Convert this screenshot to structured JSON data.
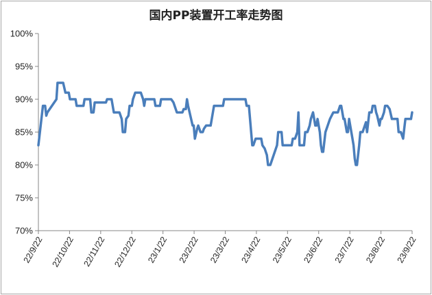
{
  "chart_data": {
    "type": "line",
    "title": "国内PP装置开工率走势图",
    "xlabel": "",
    "ylabel": "",
    "ylim": [
      70,
      100
    ],
    "grid": false,
    "legend": "none",
    "line_color": "#4a7ebb",
    "y_ticks": [
      "70%",
      "75%",
      "80%",
      "85%",
      "90%",
      "95%",
      "100%"
    ],
    "x_ticks": [
      "22/9/22",
      "22/10/22",
      "22/11/22",
      "22/12/22",
      "23/1/22",
      "23/2/22",
      "23/3/22",
      "23/4/22",
      "23/5/22",
      "23/6/22",
      "23/7/22",
      "23/8/22",
      "23/9/22"
    ],
    "series": [
      {
        "values": [
          [
            0,
            83.0
          ],
          [
            4,
            89.0
          ],
          [
            6,
            89.0
          ],
          [
            7,
            87.5
          ],
          [
            8,
            88.0
          ],
          [
            12,
            89.0
          ],
          [
            16,
            90.0
          ],
          [
            17,
            92.5
          ],
          [
            22,
            92.5
          ],
          [
            24,
            91.0
          ],
          [
            27,
            91.0
          ],
          [
            28,
            90.0
          ],
          [
            33,
            90.0
          ],
          [
            34,
            89.0
          ],
          [
            40,
            89.0
          ],
          [
            41,
            90.0
          ],
          [
            46,
            90.0
          ],
          [
            47,
            88.0
          ],
          [
            49,
            88.0
          ],
          [
            50,
            89.5
          ],
          [
            60,
            89.5
          ],
          [
            61,
            90.0
          ],
          [
            65,
            90.0
          ],
          [
            67,
            88.0
          ],
          [
            72,
            88.0
          ],
          [
            74,
            87.0
          ],
          [
            75,
            85.0
          ],
          [
            77,
            85.0
          ],
          [
            78,
            87.0
          ],
          [
            80,
            87.5
          ],
          [
            81,
            89.0
          ],
          [
            83,
            89.0
          ],
          [
            84,
            90.0
          ],
          [
            86,
            91.0
          ],
          [
            91,
            91.0
          ],
          [
            93,
            90.0
          ],
          [
            94,
            89.0
          ],
          [
            95,
            90.0
          ],
          [
            103,
            90.0
          ],
          [
            104,
            89.0
          ],
          [
            108,
            89.0
          ],
          [
            109,
            90.0
          ],
          [
            118,
            90.0
          ],
          [
            120,
            89.5
          ],
          [
            123,
            88.0
          ],
          [
            128,
            88.0
          ],
          [
            129,
            88.5
          ],
          [
            131,
            88.5
          ],
          [
            132,
            90.0
          ],
          [
            133,
            89.0
          ],
          [
            135,
            87.5
          ],
          [
            137,
            86.0
          ],
          [
            138,
            86.0
          ],
          [
            139,
            84.0
          ],
          [
            141,
            85.5
          ],
          [
            142,
            86.0
          ],
          [
            144,
            85.0
          ],
          [
            146,
            85.0
          ],
          [
            147,
            85.5
          ],
          [
            149,
            86.0
          ],
          [
            153,
            86.0
          ],
          [
            156,
            89.0
          ],
          [
            164,
            89.0
          ],
          [
            165,
            90.0
          ],
          [
            184,
            90.0
          ],
          [
            185,
            89.0
          ],
          [
            187,
            89.0
          ],
          [
            190,
            83.0
          ],
          [
            191,
            83.0
          ],
          [
            193,
            84.0
          ],
          [
            198,
            84.0
          ],
          [
            199,
            83.0
          ],
          [
            201,
            82.5
          ],
          [
            203,
            81.5
          ],
          [
            204,
            80.0
          ],
          [
            206,
            80.0
          ],
          [
            212,
            83.0
          ],
          [
            213,
            85.0
          ],
          [
            216,
            85.0
          ],
          [
            217,
            83.0
          ],
          [
            225,
            83.0
          ],
          [
            226,
            84.0
          ],
          [
            228,
            84.0
          ],
          [
            230,
            85.0
          ],
          [
            231,
            88.0
          ],
          [
            232,
            83.0
          ],
          [
            236,
            83.0
          ],
          [
            237,
            85.0
          ],
          [
            239,
            85.0
          ],
          [
            241,
            86.0
          ],
          [
            242,
            87.0
          ],
          [
            244,
            88.0
          ],
          [
            246,
            86.0
          ],
          [
            247,
            86.0
          ],
          [
            248,
            87.0
          ],
          [
            250,
            85.0
          ],
          [
            251,
            83.0
          ],
          [
            252,
            82.0
          ],
          [
            253,
            82.0
          ],
          [
            255,
            85.0
          ],
          [
            257,
            86.0
          ],
          [
            259,
            87.0
          ],
          [
            262,
            88.0
          ],
          [
            266,
            88.0
          ],
          [
            268,
            89.0
          ],
          [
            269,
            89.0
          ],
          [
            271,
            87.0
          ],
          [
            272,
            87.0
          ],
          [
            274,
            85.0
          ],
          [
            275,
            85.0
          ],
          [
            276,
            87.0
          ],
          [
            279,
            84.0
          ],
          [
            280,
            83.0
          ],
          [
            281,
            81.0
          ],
          [
            282,
            80.0
          ],
          [
            283,
            80.0
          ],
          [
            285,
            83.0
          ],
          [
            286,
            85.0
          ],
          [
            288,
            85.0
          ],
          [
            291,
            86.5
          ],
          [
            292,
            85.0
          ],
          [
            294,
            88.0
          ],
          [
            296,
            88.0
          ],
          [
            297,
            89.0
          ],
          [
            299,
            89.0
          ],
          [
            300,
            88.0
          ],
          [
            301,
            87.5
          ],
          [
            303,
            86.0
          ],
          [
            304,
            87.0
          ],
          [
            305,
            87.0
          ],
          [
            307,
            88.0
          ],
          [
            308,
            89.0
          ],
          [
            310,
            89.0
          ],
          [
            312,
            88.5
          ],
          [
            314,
            87.0
          ],
          [
            319,
            87.0
          ],
          [
            320,
            85.0
          ],
          [
            322,
            85.0
          ],
          [
            324,
            84.0
          ],
          [
            325,
            85.5
          ],
          [
            326,
            87.0
          ],
          [
            331,
            87.0
          ],
          [
            332,
            88.0
          ]
        ]
      }
    ]
  }
}
